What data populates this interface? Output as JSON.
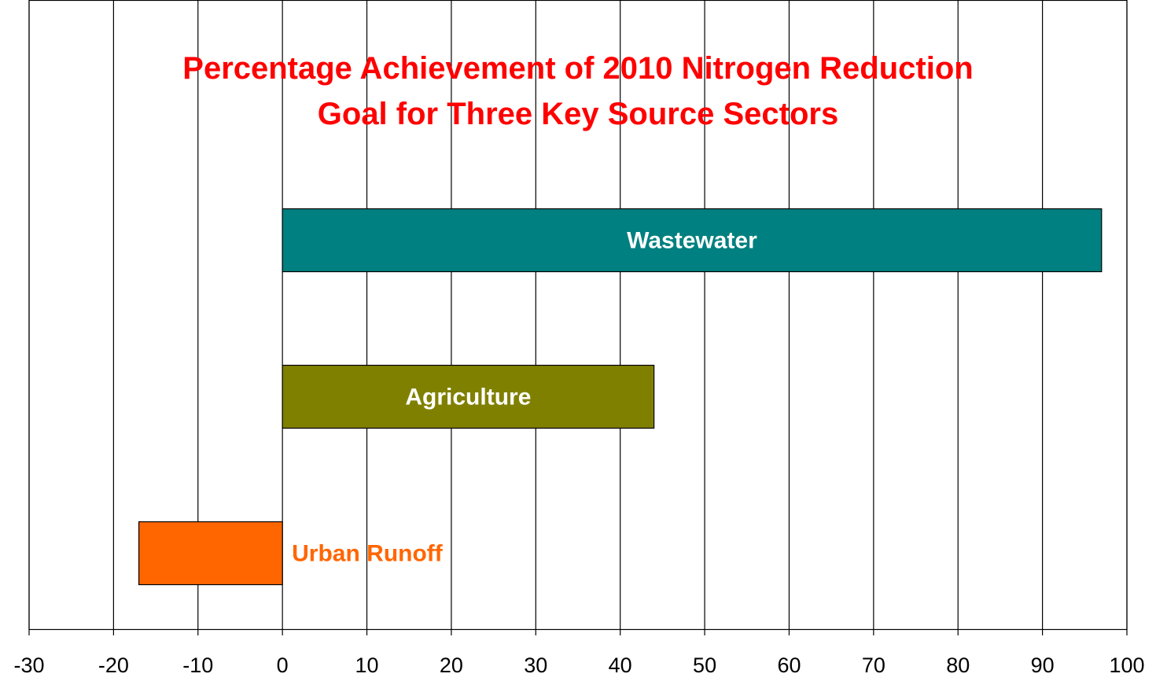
{
  "chart_data": {
    "type": "bar",
    "orientation": "horizontal",
    "title": "Percentage Achievement of 2010 Nitrogen Reduction Goal for Three Key Source Sectors",
    "categories": [
      "Wastewater",
      "Agriculture",
      "Urban Runoff"
    ],
    "values": [
      97,
      44,
      -17
    ],
    "colors": [
      "#008080",
      "#808000",
      "#ff6600"
    ],
    "xlim": [
      -30,
      100
    ],
    "xticks": [
      -30,
      -20,
      -10,
      0,
      10,
      20,
      30,
      40,
      50,
      60,
      70,
      80,
      90,
      100
    ],
    "grid": true
  }
}
